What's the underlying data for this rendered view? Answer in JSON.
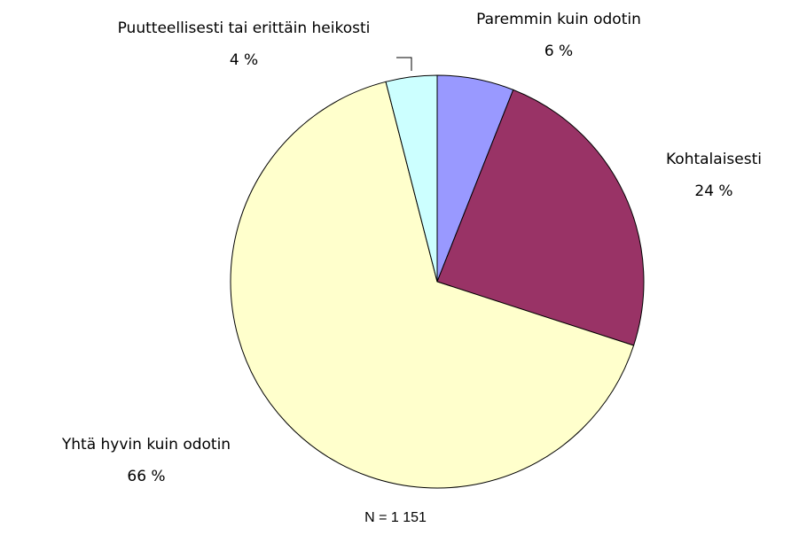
{
  "chart_data": {
    "type": "pie",
    "categories": [
      "Paremmin kuin odotin",
      "Kohtalaisesti",
      "Yhtä hyvin kuin odotin",
      "Puutteellisesti tai erittäin heikosti"
    ],
    "values": [
      6,
      24,
      66,
      4
    ],
    "value_labels": [
      "6 %",
      "24 %",
      "66 %",
      "4 %"
    ],
    "colors": [
      "#9999ff",
      "#993366",
      "#ffffcc",
      "#ccffff"
    ],
    "annotation": "N = 1 151"
  }
}
